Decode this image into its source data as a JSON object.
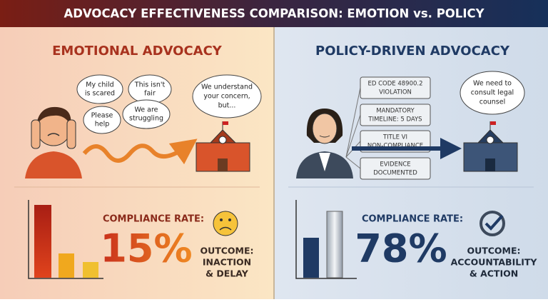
{
  "header": {
    "title": "ADVOCACY EFFECTIVENESS COMPARISON: EMOTION vs. POLICY"
  },
  "left": {
    "heading": "EMOTIONAL ADVOCACY",
    "bubbles": [
      [
        "My child",
        "is scared"
      ],
      [
        "This isn't",
        "fair"
      ],
      [
        "Please",
        "help"
      ],
      [
        "We are",
        "struggling"
      ]
    ],
    "school_bubble": [
      "We understand",
      "your concern,",
      "but..."
    ],
    "rate_label": "COMPLIANCE RATE:",
    "rate": "15%",
    "outcome": [
      "OUTCOME:",
      "INACTION",
      "& DELAY"
    ]
  },
  "right": {
    "heading": "POLICY-DRIVEN ADVOCACY",
    "boxes": [
      [
        "ED CODE 48900.2",
        "VIOLATION"
      ],
      [
        "MANDATORY",
        "TIMELINE: 5 DAYS"
      ],
      [
        "TITLE VI",
        "NON-COMPLIANCE"
      ],
      [
        "EVIDENCE",
        "DOCUMENTED"
      ]
    ],
    "school_bubble": [
      "We need to",
      "consult legal",
      "counsel"
    ],
    "rate_label": "COMPLIANCE RATE:",
    "rate": "78%",
    "outcome": [
      "OUTCOME:",
      "ACCOUNTABILITY",
      "& ACTION"
    ]
  }
}
